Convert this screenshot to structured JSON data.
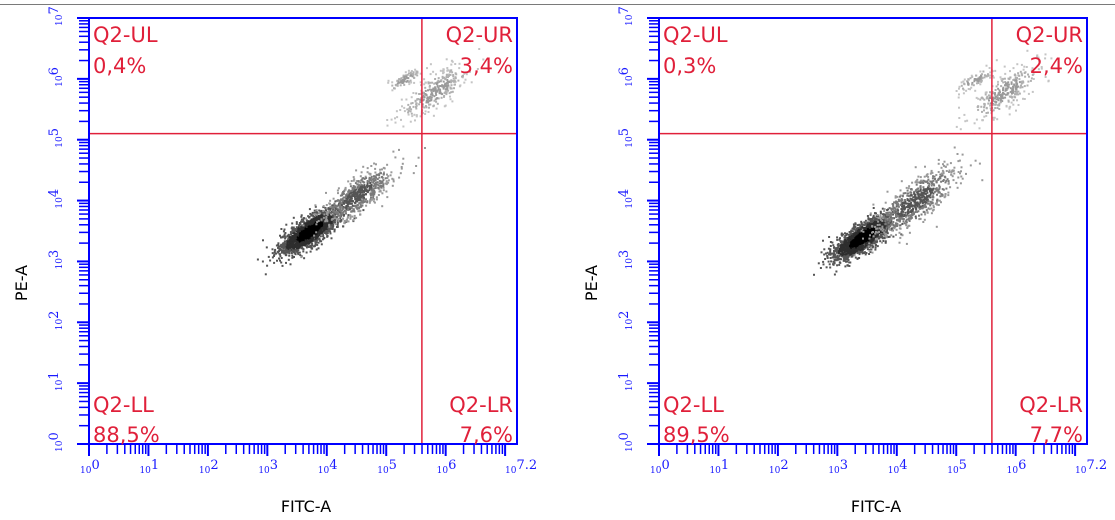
{
  "chart_data": [
    {
      "type": "scatter",
      "subtype": "flow-cytometry-density-dot-plot",
      "xlabel": "FITC-A",
      "ylabel": "PE-A",
      "xscale": "log",
      "yscale": "log",
      "xlim": [
        1,
        15848932
      ],
      "ylim": [
        1,
        10000000
      ],
      "x_tick_labels": [
        "10^0",
        "10^1",
        "10^2",
        "10^3",
        "10^4",
        "10^5",
        "10^6",
        "10^7.2"
      ],
      "y_tick_labels": [
        "10^0",
        "10^1",
        "10^2",
        "10^3",
        "10^4",
        "10^5",
        "10^6",
        "10^7"
      ],
      "gate": {
        "x": 398107,
        "y": 125893
      },
      "quadrants": [
        {
          "name": "Q2-UL",
          "percent": "0,4%",
          "position": "top-left"
        },
        {
          "name": "Q2-UR",
          "percent": "3,4%",
          "position": "top-right"
        },
        {
          "name": "Q2-LL",
          "percent": "88,5%",
          "position": "bottom-left"
        },
        {
          "name": "Q2-LR",
          "percent": "7,6%",
          "position": "bottom-right"
        }
      ],
      "populations": [
        {
          "x": 5000,
          "y": 3200,
          "sx": 0.25,
          "sy": 0.2,
          "n": 1700,
          "density": "high"
        },
        {
          "x": 31600,
          "y": 12600,
          "sx": 0.3,
          "sy": 0.25,
          "n": 600,
          "density": "medium"
        },
        {
          "x": 631000,
          "y": 631000,
          "sx": 0.3,
          "sy": 0.25,
          "n": 300,
          "density": "low"
        },
        {
          "x": 200000,
          "y": 1000000,
          "sx": 0.15,
          "sy": 0.1,
          "n": 80,
          "density": "low"
        }
      ],
      "colors": {
        "frame": "#0000ff",
        "gate": "#e0203a",
        "points": "#000000"
      }
    },
    {
      "type": "scatter",
      "subtype": "flow-cytometry-density-dot-plot",
      "xlabel": "FITC-A",
      "ylabel": "PE-A",
      "xscale": "log",
      "yscale": "log",
      "xlim": [
        1,
        15848932
      ],
      "ylim": [
        1,
        10000000
      ],
      "x_tick_labels": [
        "10^0",
        "10^1",
        "10^2",
        "10^3",
        "10^4",
        "10^5",
        "10^6",
        "10^7.2"
      ],
      "y_tick_labels": [
        "10^0",
        "10^1",
        "10^2",
        "10^3",
        "10^4",
        "10^5",
        "10^6",
        "10^7"
      ],
      "gate": {
        "x": 398107,
        "y": 125893
      },
      "quadrants": [
        {
          "name": "Q2-UL",
          "percent": "0,3%",
          "position": "top-left"
        },
        {
          "name": "Q2-UR",
          "percent": "2,4%",
          "position": "top-right"
        },
        {
          "name": "Q2-LL",
          "percent": "89,5%",
          "position": "bottom-left"
        },
        {
          "name": "Q2-LR",
          "percent": "7,7%",
          "position": "bottom-right"
        }
      ],
      "populations": [
        {
          "x": 2500,
          "y": 2500,
          "sx": 0.25,
          "sy": 0.2,
          "n": 1700,
          "density": "high"
        },
        {
          "x": 20000,
          "y": 10000,
          "sx": 0.35,
          "sy": 0.3,
          "n": 700,
          "density": "medium"
        },
        {
          "x": 631000,
          "y": 631000,
          "sx": 0.3,
          "sy": 0.25,
          "n": 300,
          "density": "low"
        },
        {
          "x": 200000,
          "y": 1000000,
          "sx": 0.15,
          "sy": 0.1,
          "n": 80,
          "density": "low"
        }
      ],
      "colors": {
        "frame": "#0000ff",
        "gate": "#e0203a",
        "points": "#000000"
      }
    }
  ]
}
